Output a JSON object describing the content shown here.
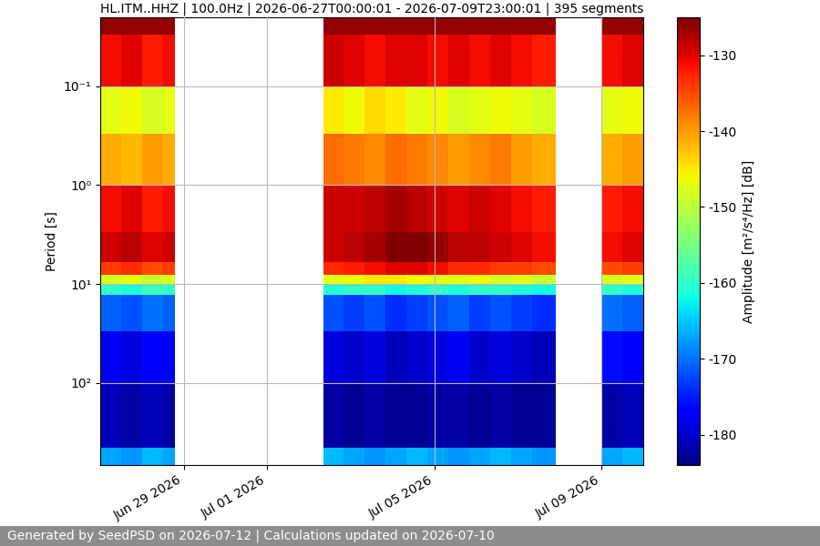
{
  "chart_data": {
    "type": "heatmap",
    "title": "HL.ITM..HHZ | 100.0Hz | 2026-06-27T00:00:01 - 2026-07-09T23:00:01 | 395 segments",
    "y_label": "Period [s]",
    "colorbar_label": "Amplitude [m²/s⁴/Hz] [dB]",
    "footer": "Generated by SeedPSD on 2026-07-12 | Calculations updated on 2026-07-10",
    "color": "jet",
    "log": "y",
    "grid": true,
    "xlim": [
      "2026-06-27T00:00",
      "2026-07-10T00:00"
    ],
    "xticks": [
      {
        "value": "2026-06-29T00:00",
        "label": "Jun 29 2026"
      },
      {
        "value": "2026-07-01T00:00",
        "label": "Jul 01 2026"
      },
      {
        "value": "2026-07-05T00:00",
        "label": "Jul 05 2026"
      },
      {
        "value": "2026-07-09T00:00",
        "label": "Jul 09 2026"
      }
    ],
    "ylim": [
      680,
      0.02
    ],
    "yticks": [
      {
        "value": 0.1,
        "label": "10⁻¹"
      },
      {
        "value": 1,
        "label": "10⁰"
      },
      {
        "value": 10,
        "label": "10¹"
      },
      {
        "value": 100,
        "label": "10²"
      }
    ],
    "x_edges": [
      "2026-06-27T00:00",
      "2026-06-27T12:00",
      "2026-06-28T00:00",
      "2026-06-28T12:00",
      "2026-06-28T19:00",
      "2026-07-02T08:00",
      "2026-07-02T20:00",
      "2026-07-03T08:00",
      "2026-07-03T20:00",
      "2026-07-04T08:00",
      "2026-07-04T20:00",
      "2026-07-05T08:00",
      "2026-07-05T20:00",
      "2026-07-06T08:00",
      "2026-07-06T20:00",
      "2026-07-07T08:00",
      "2026-07-07T22:00",
      "2026-07-09T00:00",
      "2026-07-09T12:00",
      "2026-07-10T00:00"
    ],
    "y_edges": [
      0.02,
      0.03,
      0.1,
      0.3,
      1,
      3,
      6,
      8,
      10,
      13,
      30,
      100,
      450,
      680
    ],
    "cells": [
      [
        -126,
        -126,
        -126,
        -126,
        null,
        -126,
        -126,
        -126,
        -126,
        -126,
        -126,
        -126,
        -126,
        -126,
        -126,
        -126,
        null,
        -126,
        -126
      ],
      [
        -131,
        -130,
        -132,
        -131,
        null,
        -129,
        -130,
        -131,
        -130,
        -130,
        -131,
        -130,
        -131,
        -130,
        -131,
        -132,
        null,
        -131,
        -130
      ],
      [
        -147,
        -146,
        -148,
        -147,
        null,
        -145,
        -146,
        -144,
        -145,
        -147,
        -146,
        -148,
        -147,
        -146,
        -147,
        -148,
        null,
        -147,
        -146
      ],
      [
        -141,
        -142,
        -140,
        -141,
        null,
        -137,
        -138,
        -139,
        -137,
        -138,
        -139,
        -140,
        -139,
        -138,
        -140,
        -141,
        null,
        -141,
        -140
      ],
      [
        -131,
        -130,
        -132,
        -131,
        null,
        -129,
        -129,
        -128,
        -127,
        -128,
        -129,
        -130,
        -129,
        -130,
        -131,
        -132,
        null,
        -132,
        -131
      ],
      [
        -129,
        -128,
        -130,
        -129,
        null,
        -129,
        -128,
        -127,
        -125,
        -125,
        -126,
        -128,
        -128,
        -129,
        -130,
        -131,
        null,
        -131,
        -130
      ],
      [
        -134,
        -133,
        -135,
        -134,
        null,
        -133,
        -132,
        -131,
        -130,
        -130,
        -131,
        -133,
        -133,
        -134,
        -134,
        -135,
        null,
        -135,
        -134
      ],
      [
        -148,
        -147,
        -149,
        -148,
        null,
        -147,
        -146,
        -145,
        -145,
        -146,
        -147,
        -147,
        -146,
        -148,
        -147,
        -149,
        null,
        -148,
        -147
      ],
      [
        -160,
        -161,
        -159,
        -160,
        null,
        -161,
        -160,
        -160,
        -162,
        -161,
        -160,
        -161,
        -160,
        -160,
        -161,
        -162,
        null,
        -160,
        -161
      ],
      [
        -171,
        -172,
        -170,
        -171,
        null,
        -172,
        -173,
        -172,
        -174,
        -173,
        -172,
        -171,
        -173,
        -172,
        -173,
        -174,
        null,
        -170,
        -171
      ],
      [
        -178,
        -179,
        -177,
        -178,
        null,
        -179,
        -180,
        -179,
        -181,
        -180,
        -179,
        -178,
        -180,
        -179,
        -180,
        -181,
        null,
        -176,
        -177
      ],
      [
        -181,
        -182,
        -181,
        -182,
        null,
        -182,
        -183,
        -182,
        -183,
        -183,
        -182,
        -182,
        -183,
        -182,
        -183,
        -183,
        null,
        -182,
        -181
      ],
      [
        -167,
        -168,
        -166,
        -167,
        null,
        -166,
        -167,
        -168,
        -167,
        -166,
        -167,
        -168,
        -167,
        -166,
        -167,
        -168,
        null,
        -167,
        -166
      ]
    ],
    "colorbar_range": [
      -184,
      -125
    ],
    "colorbar_ticks": [
      -180,
      -170,
      -160,
      -150,
      -140,
      -130
    ]
  }
}
